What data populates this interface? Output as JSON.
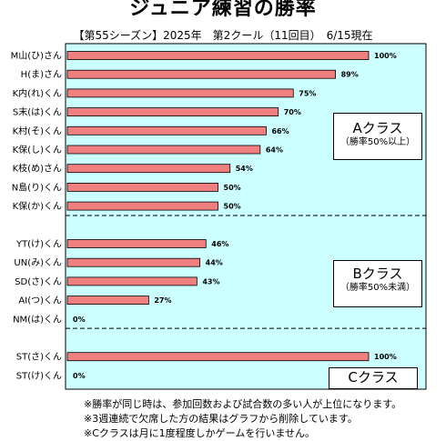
{
  "header": {
    "title": "ジュニア練習の勝率",
    "subtitle": "【第55シーズン】2025年　第2クール（11回目）　6/15現在"
  },
  "classes": [
    {
      "name": "Aクラス",
      "note": "（勝率50%以上）"
    },
    {
      "name": "Bクラス",
      "note": "（勝率50%未満）"
    },
    {
      "name": "Cクラス",
      "note": ""
    }
  ],
  "notes": [
    "※勝率が同じ時は、参加回数および試合数の多い人が上位になります。",
    "※3週連続で欠席した方の結果はグラフから削除しています。",
    "※Cクラスは月に1度程度しかゲームを行いません。"
  ],
  "colors": {
    "bar": "#f08080",
    "plot_bg": "#ccffff",
    "bar_border": "#000000"
  },
  "chart_data": {
    "type": "bar",
    "orientation": "horizontal",
    "title": "ジュニア練習の勝率",
    "xlim": [
      0,
      100
    ],
    "unit": "%",
    "groups": [
      {
        "class": "Aクラス",
        "categories": [
          "M山(ひ)さん",
          "H(ま)さん",
          "K内(れ)くん",
          "S末(は)くん",
          "K村(そ)くん",
          "K保(し)くん",
          "K枝(め)さん",
          "N島(り)くん",
          "K保(か)くん"
        ],
        "values": [
          100,
          89,
          75,
          70,
          66,
          64,
          54,
          50,
          50
        ],
        "labels": [
          "100%",
          "89%",
          "75%",
          "70%",
          "66%",
          "64%",
          "54%",
          "50%",
          "50%"
        ]
      },
      {
        "class": "Bクラス",
        "categories": [
          "YT(け)くん",
          "UN(み)くん",
          "SD(さ)くん",
          "AI(つ)くん",
          "NM(は)くん"
        ],
        "values": [
          46,
          44,
          43,
          27,
          0
        ],
        "labels": [
          "46%",
          "44%",
          "43%",
          "27%",
          "0%"
        ]
      },
      {
        "class": "Cクラス",
        "categories": [
          "ST(さ)くん",
          "ST(け)くん"
        ],
        "values": [
          100,
          0
        ],
        "labels": [
          "100%",
          "0%"
        ]
      }
    ]
  }
}
